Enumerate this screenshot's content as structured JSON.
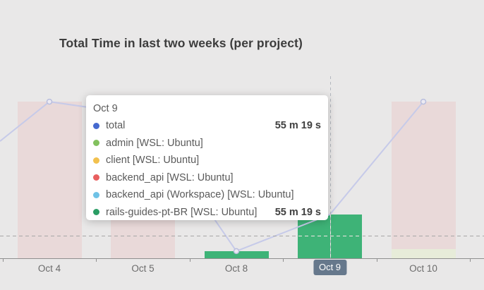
{
  "title": "Total Time in last two weeks (per project)",
  "tooltip": {
    "header": "Oct 9",
    "rows": [
      {
        "label": "total",
        "value": "55 m 19 s",
        "color": "#4569cf"
      },
      {
        "label": "admin [WSL: Ubuntu]",
        "value": "",
        "color": "#82c15e"
      },
      {
        "label": "client [WSL: Ubuntu]",
        "value": "",
        "color": "#f2c14e"
      },
      {
        "label": "backend_api [WSL: Ubuntu]",
        "value": "",
        "color": "#e85f5f"
      },
      {
        "label": "backend_api (Workspace) [WSL: Ubuntu]",
        "value": "",
        "color": "#6fc2e6"
      },
      {
        "label": "rails-guides-pt-BR [WSL: Ubuntu]",
        "value": "55 m 19 s",
        "color": "#2a9d64"
      }
    ]
  },
  "x_axis": {
    "labels": [
      "Oct 4",
      "Oct 5",
      "Oct 8",
      "Oct 9",
      "Oct 10"
    ],
    "selected": "Oct 9"
  },
  "chart_data": {
    "type": "bar",
    "subtype": "stacked project bars with total line, Oct 9 hovered (crosshair + tooltip)",
    "title": "Total Time in last two weeks (per project)",
    "categories": [
      "Oct 4",
      "Oct 5",
      "Oct 8",
      "Oct 9",
      "Oct 10"
    ],
    "unit": "minutes",
    "precision_note": "Oct 9 exact from tooltip (55 m 19 s); other values estimated from bar heights",
    "highlighted_series": "rails-guides-pt-BR [WSL: Ubuntu]",
    "hovered_category": "Oct 9",
    "line_enters_left_at_minutes": 148,
    "series": [
      {
        "name": "total",
        "kind": "line",
        "chart_color": "#c6cae9",
        "values": [
          198,
          181,
          9,
          55.32,
          198
        ]
      },
      {
        "name": "admin [WSL: Ubuntu]",
        "kind": "bar",
        "chart_color": "#e7ecd9",
        "values": [
          0,
          0,
          0,
          0,
          12
        ]
      },
      {
        "name": "client [WSL: Ubuntu]",
        "kind": "bar",
        "chart_color": "#f2c14e",
        "values": [
          0,
          0,
          0,
          0,
          0
        ]
      },
      {
        "name": "backend_api [WSL: Ubuntu]",
        "kind": "bar",
        "chart_color": "#e9d9d9",
        "values": [
          198,
          181,
          0,
          0,
          186
        ]
      },
      {
        "name": "backend_api (Workspace) [WSL: Ubuntu]",
        "kind": "bar",
        "chart_color": "#6fc2e6",
        "values": [
          0,
          0,
          0,
          0,
          0
        ]
      },
      {
        "name": "rails-guides-pt-BR [WSL: Ubuntu]",
        "kind": "bar",
        "chart_color": "#3eb377",
        "values": [
          0,
          0,
          9,
          55.32,
          0
        ]
      }
    ],
    "legend_position": "none (legend not visible in view)",
    "grid": "off"
  }
}
